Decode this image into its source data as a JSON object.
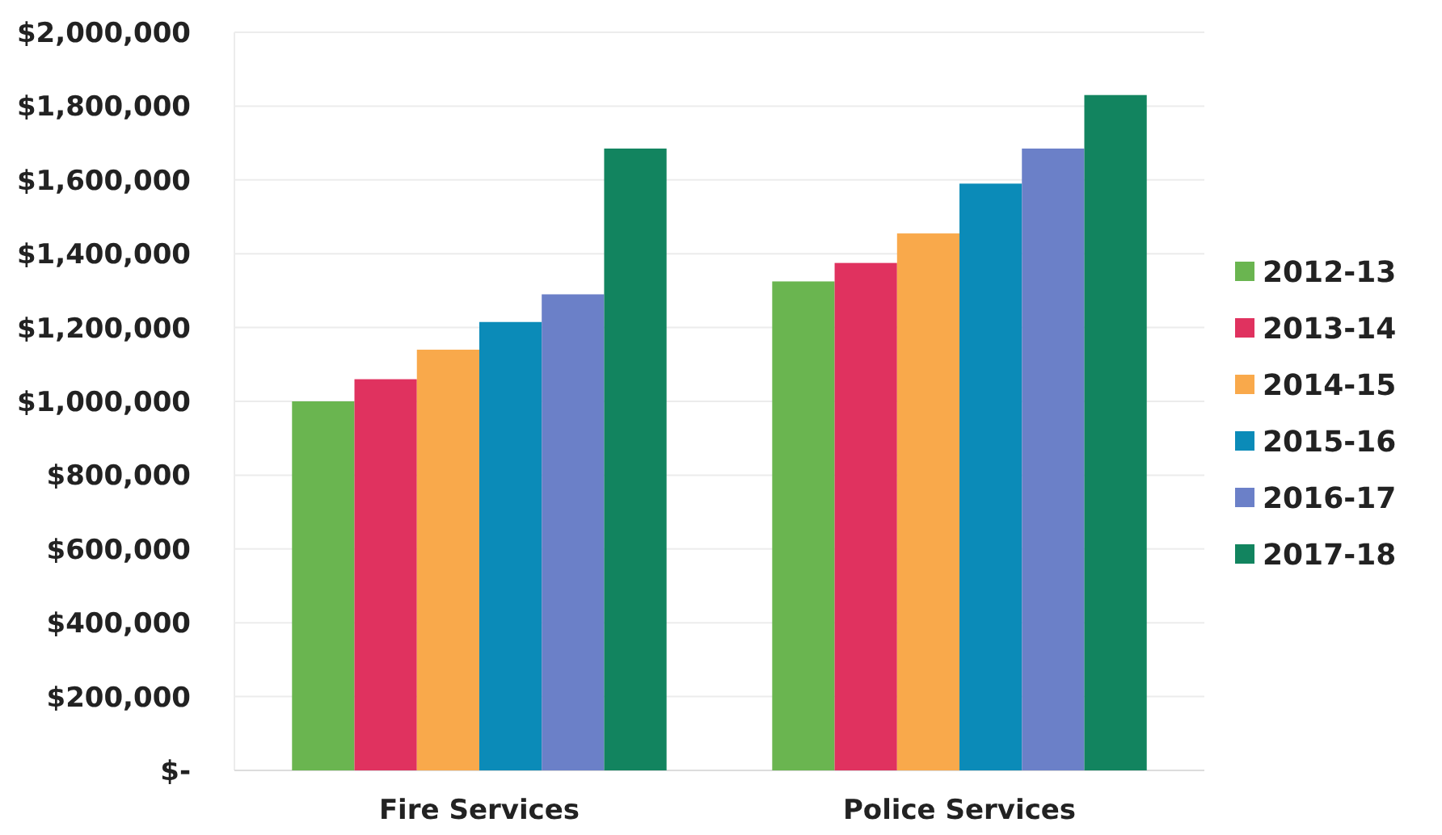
{
  "chart_data": {
    "type": "bar",
    "categories": [
      "Fire Services",
      "Police Services"
    ],
    "series": [
      {
        "name": "2012-13",
        "color": "#6ab550",
        "values": [
          1000000,
          1325000
        ]
      },
      {
        "name": "2013-14",
        "color": "#e0325f",
        "values": [
          1060000,
          1375000
        ]
      },
      {
        "name": "2014-15",
        "color": "#f9a94b",
        "values": [
          1140000,
          1455000
        ]
      },
      {
        "name": "2015-16",
        "color": "#0b8bb8",
        "values": [
          1215000,
          1590000
        ]
      },
      {
        "name": "2016-17",
        "color": "#6b80c8",
        "values": [
          1290000,
          1685000
        ]
      },
      {
        "name": "2017-18",
        "color": "#12845f",
        "values": [
          1685000,
          1830000
        ]
      }
    ],
    "ylim": [
      0,
      2000000
    ],
    "yticks": [
      {
        "value": 0,
        "label": "$-"
      },
      {
        "value": 200000,
        "label": "$200,000"
      },
      {
        "value": 400000,
        "label": "$400,000"
      },
      {
        "value": 600000,
        "label": "$600,000"
      },
      {
        "value": 800000,
        "label": "$800,000"
      },
      {
        "value": 1000000,
        "label": "$1,000,000"
      },
      {
        "value": 1200000,
        "label": "$1,200,000"
      },
      {
        "value": 1400000,
        "label": "$1,400,000"
      },
      {
        "value": 1600000,
        "label": "$1,600,000"
      },
      {
        "value": 1800000,
        "label": "$1,800,000"
      },
      {
        "value": 2000000,
        "label": "$2,000,000"
      }
    ],
    "grid": "y",
    "legend": "right"
  }
}
